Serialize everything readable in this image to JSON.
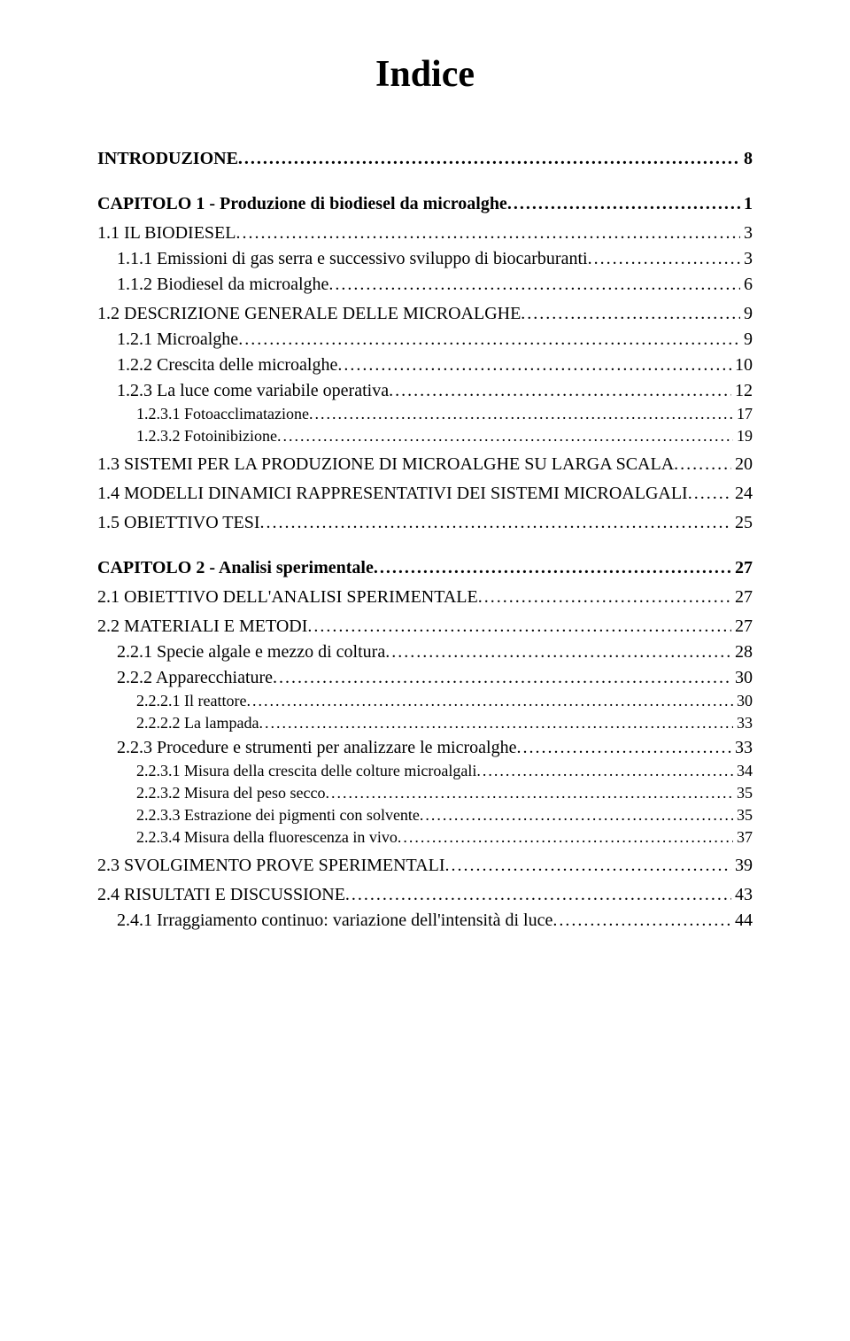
{
  "title": "Indice",
  "entries": [
    {
      "level": 1,
      "label": "INTRODUZIONE",
      "page": "8"
    },
    {
      "level": 1,
      "label": "CAPITOLO 1 - Produzione di biodiesel da microalghe",
      "page": "1"
    },
    {
      "level": 2,
      "label": "1.1 I",
      "sc": "L BIODIESEL",
      "page": "3"
    },
    {
      "level": 3,
      "label": "1.1.1 Emissioni di gas serra e successivo sviluppo di biocarburanti",
      "page": "3"
    },
    {
      "level": 3,
      "label": "1.1.2 Biodiesel da microalghe",
      "page": "6"
    },
    {
      "level": 2,
      "label": "1.2 D",
      "sc": "ESCRIZIONE GENERALE DELLE MICROALGHE",
      "page": "9"
    },
    {
      "level": 3,
      "label": "1.2.1 Microalghe",
      "page": "9"
    },
    {
      "level": 3,
      "label": "1.2.2 Crescita delle microalghe",
      "page": "10"
    },
    {
      "level": 3,
      "label": "1.2.3 La luce come variabile operativa",
      "page": "12"
    },
    {
      "level": 4,
      "label": "1.2.3.1 Fotoacclimatazione",
      "page": "17"
    },
    {
      "level": 4,
      "label": "1.2.3.2 Fotoinibizione",
      "page": "19"
    },
    {
      "level": 2,
      "label": "1.3 S",
      "sc": "ISTEMI PER LA PRODUZIONE DI MICROALGHE SU LARGA SCALA",
      "page": "20"
    },
    {
      "level": 2,
      "label": "1.4 M",
      "sc": "ODELLI DINAMICI RAPPRESENTATIVI DEI SISTEMI MICROALGALI",
      "page": "24"
    },
    {
      "level": 2,
      "label": "1.5 O",
      "sc": "BIETTIVO TESI",
      "page": "25"
    },
    {
      "level": 1,
      "label": "CAPITOLO 2 - Analisi sperimentale",
      "page": "27"
    },
    {
      "level": 2,
      "label": "2.1 O",
      "sc": "BIETTIVO DELL'ANALISI SPERIMENTALE",
      "page": "27"
    },
    {
      "level": 2,
      "label": "2.2 M",
      "sc": "ATERIALI E METODI",
      "page": "27"
    },
    {
      "level": 3,
      "label": "2.2.1 Specie algale e mezzo di coltura",
      "page": "28"
    },
    {
      "level": 3,
      "label": "2.2.2 Apparecchiature",
      "page": "30"
    },
    {
      "level": 4,
      "label": "2.2.2.1 Il reattore",
      "page": "30"
    },
    {
      "level": 4,
      "label": "2.2.2.2 La lampada",
      "page": "33"
    },
    {
      "level": 3,
      "label": "2.2.3 Procedure e strumenti per analizzare le microalghe",
      "page": "33"
    },
    {
      "level": 4,
      "label": "2.2.3.1 Misura della crescita delle colture microalgali",
      "page": "34"
    },
    {
      "level": 4,
      "label": "2.2.3.2 Misura del peso secco",
      "page": "35"
    },
    {
      "level": 4,
      "label": "2.2.3.3 Estrazione dei pigmenti con solvente",
      "page": "35"
    },
    {
      "level": 4,
      "label": "2.2.3.4 Misura della fluorescenza in vivo",
      "page": "37"
    },
    {
      "level": 2,
      "label": "2.3 S",
      "sc": "VOLGIMENTO PROVE SPERIMENTALI",
      "page": "39"
    },
    {
      "level": 2,
      "label": "2.4 R",
      "sc": "ISULTATI E DISCUSSIONE",
      "page": "43"
    },
    {
      "level": 3,
      "label": "2.4.1 Irraggiamento continuo: variazione dell'intensità di luce",
      "page": "44"
    }
  ]
}
